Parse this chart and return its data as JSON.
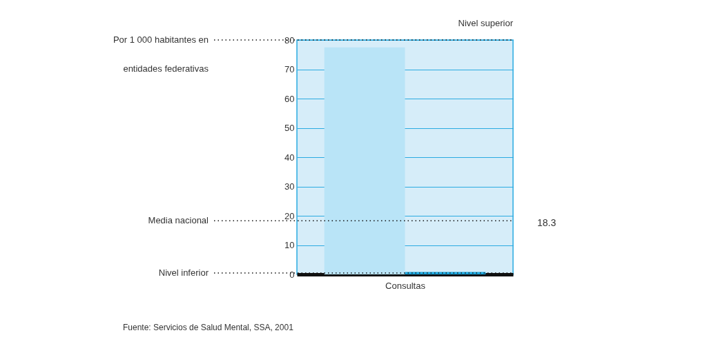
{
  "chart_data": {
    "type": "bar",
    "categories": [
      null,
      null
    ],
    "values": [
      77.5,
      0.8
    ],
    "colors": [
      "#b9e4f7",
      "#1fa9e0"
    ],
    "xlabel": "Consultas",
    "ylabel": "Por 1 000 habitantes en entidades federativas",
    "ylim": [
      0,
      80
    ],
    "yticks": [
      0,
      10,
      20,
      30,
      40,
      50,
      60,
      70,
      80
    ],
    "grid": "y",
    "tick_labels": "y",
    "ref_lines": [
      {
        "axis": "y",
        "value": 80,
        "label": "Nivel superior",
        "line_style": "dotted"
      },
      {
        "axis": "y",
        "value": 18.3,
        "label": "Media nacional",
        "line_style": "dotted"
      },
      {
        "axis": "y",
        "value": 0.5,
        "label": "Nivel inferior",
        "line_style": "dotted"
      }
    ],
    "annotations": [
      "18.3",
      "Fuente: Servicios de Salud Mental, SSA, 2001"
    ]
  }
}
